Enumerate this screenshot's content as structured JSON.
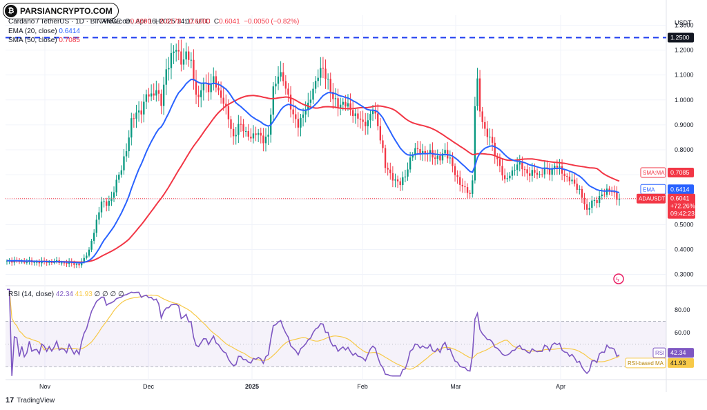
{
  "watermark": "PARSIANCRYPTO.COM",
  "header": {
    "line1_pre": "Cardano / TetherUS · 1D · BINANCE",
    "open_label": "O",
    "open": "0.6090",
    "high_label": "H",
    "high": "0.6178",
    "low_label": "L",
    "low": "0.6000",
    "close_label": "C",
    "close": "0.6041",
    "change": "−0.0050 (−0.82%)",
    "published": "view.com, Apr 16, 2025 14:17 UTC",
    "ema_label": "EMA (20, close)",
    "ema_value": "0.6414",
    "sma_label": "SMA (50, close)",
    "sma_value": "0.7085",
    "rsi_label": "RSI (14, close)",
    "rsi_value": "42.34",
    "rsi_ma_value": "41.93",
    "rsi_extra": "∅ ∅ ∅ ∅"
  },
  "footer": {
    "brand": "TradingView"
  },
  "colors": {
    "up": "#089981",
    "down": "#f23645",
    "ema": "#2962ff",
    "sma": "#f23645",
    "rsi": "#7e57c2",
    "rsi_ma": "#f7c948",
    "level": "#1e3cf0"
  },
  "chart_data": [
    {
      "type": "candlestick",
      "x_labels": [
        "Nov",
        "Dec",
        "2025",
        "Feb",
        "Mar",
        "Apr"
      ],
      "y_ticks": [
        "1.3000",
        "1.2000",
        "1.1000",
        "1.0000",
        "0.9000",
        "0.8000",
        "0.7000",
        "0.6000",
        "0.5000",
        "0.4000",
        "0.3000"
      ],
      "y_unit": "USDT",
      "ylim": [
        0.26,
        1.34
      ],
      "horizontal_level": {
        "value": 1.25,
        "label": "1.2500"
      },
      "price_tags": {
        "sma": {
          "label": "SMA:MA",
          "value": "0.7085"
        },
        "ema": {
          "label": "EMA",
          "value": "0.6414"
        },
        "price": {
          "label": "ADAUSDT",
          "value": "0.6041",
          "change": "+72.26%",
          "countdown": "09:42:23"
        }
      },
      "close_anchors": [
        [
          0,
          0.355
        ],
        [
          10,
          0.35
        ],
        [
          20,
          0.35
        ],
        [
          25,
          0.345
        ],
        [
          29,
          0.34
        ],
        [
          31,
          0.36
        ],
        [
          33,
          0.4
        ],
        [
          35,
          0.47
        ],
        [
          37,
          0.55
        ],
        [
          38,
          0.6
        ],
        [
          40,
          0.58
        ],
        [
          42,
          0.6
        ],
        [
          44,
          0.68
        ],
        [
          46,
          0.72
        ],
        [
          48,
          0.8
        ],
        [
          50,
          0.92
        ],
        [
          52,
          0.94
        ],
        [
          54,
          0.96
        ],
        [
          56,
          1.02
        ],
        [
          58,
          1.01
        ],
        [
          60,
          1.05
        ],
        [
          62,
          0.98
        ],
        [
          64,
          1.12
        ],
        [
          66,
          1.18
        ],
        [
          68,
          1.2
        ],
        [
          70,
          1.16
        ],
        [
          72,
          1.18
        ],
        [
          74,
          1.15
        ],
        [
          75,
          1.08
        ],
        [
          77,
          1.0
        ],
        [
          79,
          1.07
        ],
        [
          81,
          1.05
        ],
        [
          83,
          1.08
        ],
        [
          85,
          1.03
        ],
        [
          87,
          1.0
        ],
        [
          89,
          0.92
        ],
        [
          91,
          0.85
        ],
        [
          93,
          0.9
        ],
        [
          95,
          0.88
        ],
        [
          97,
          0.86
        ],
        [
          99,
          0.85
        ],
        [
          101,
          0.87
        ],
        [
          103,
          0.84
        ],
        [
          105,
          0.85
        ],
        [
          107,
          1.05
        ],
        [
          109,
          1.1
        ],
        [
          111,
          1.08
        ],
        [
          113,
          1.02
        ],
        [
          115,
          0.93
        ],
        [
          117,
          0.9
        ],
        [
          119,
          0.95
        ],
        [
          121,
          0.97
        ],
        [
          123,
          1.05
        ],
        [
          125,
          1.1
        ],
        [
          127,
          1.12
        ],
        [
          129,
          1.08
        ],
        [
          131,
          1.0
        ],
        [
          133,
          0.98
        ],
        [
          135,
          0.99
        ],
        [
          137,
          0.97
        ],
        [
          139,
          0.95
        ],
        [
          141,
          0.93
        ],
        [
          143,
          0.9
        ],
        [
          145,
          0.92
        ],
        [
          147,
          0.96
        ],
        [
          149,
          0.9
        ],
        [
          151,
          0.8
        ],
        [
          152,
          0.73
        ],
        [
          154,
          0.7
        ],
        [
          156,
          0.68
        ],
        [
          158,
          0.66
        ],
        [
          160,
          0.7
        ],
        [
          162,
          0.76
        ],
        [
          164,
          0.8
        ],
        [
          166,
          0.8
        ],
        [
          168,
          0.78
        ],
        [
          170,
          0.79
        ],
        [
          172,
          0.77
        ],
        [
          174,
          0.76
        ],
        [
          176,
          0.8
        ],
        [
          178,
          0.76
        ],
        [
          180,
          0.7
        ],
        [
          182,
          0.67
        ],
        [
          184,
          0.64
        ],
        [
          186,
          0.62
        ],
        [
          187,
          0.68
        ],
        [
          188,
          0.99
        ],
        [
          189,
          1.07
        ],
        [
          190,
          0.95
        ],
        [
          192,
          0.88
        ],
        [
          194,
          0.85
        ],
        [
          196,
          0.78
        ],
        [
          198,
          0.74
        ],
        [
          200,
          0.67
        ],
        [
          202,
          0.7
        ],
        [
          204,
          0.73
        ],
        [
          206,
          0.74
        ],
        [
          208,
          0.72
        ],
        [
          210,
          0.7
        ],
        [
          212,
          0.71
        ],
        [
          214,
          0.7
        ],
        [
          216,
          0.72
        ],
        [
          218,
          0.71
        ],
        [
          220,
          0.74
        ],
        [
          222,
          0.72
        ],
        [
          224,
          0.7
        ],
        [
          226,
          0.68
        ],
        [
          228,
          0.66
        ],
        [
          230,
          0.64
        ],
        [
          232,
          0.58
        ],
        [
          233,
          0.55
        ],
        [
          235,
          0.6
        ],
        [
          237,
          0.59
        ],
        [
          239,
          0.62
        ],
        [
          241,
          0.64
        ],
        [
          243,
          0.63
        ],
        [
          245,
          0.61
        ],
        [
          246,
          0.604
        ]
      ]
    },
    {
      "type": "line",
      "name": "RSI (14, close)",
      "ylim": [
        20,
        100
      ],
      "y_ticks": [
        "80.00",
        "60.00"
      ],
      "band": [
        30,
        70
      ],
      "rsi_tag": {
        "label": "RSI",
        "value": "42.34"
      },
      "rsi_ma_tag": {
        "label": "RSI-based MA",
        "value": "41.93"
      }
    }
  ]
}
